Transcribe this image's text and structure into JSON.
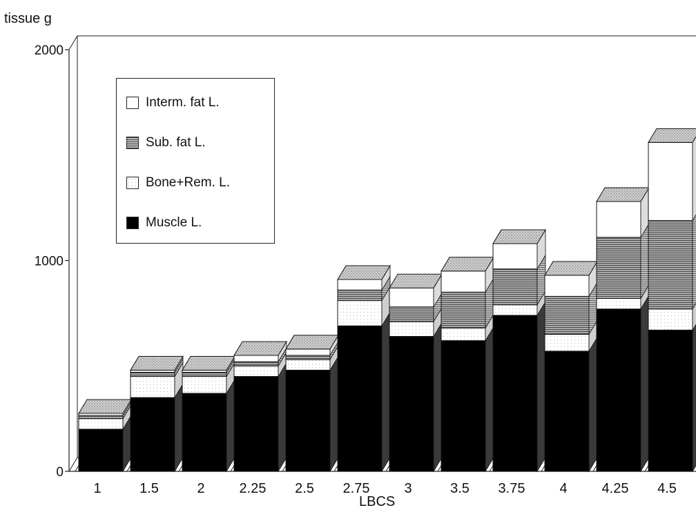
{
  "chart_data": {
    "type": "bar",
    "stacked": true,
    "three_d": true,
    "ylabel": "tissue g",
    "xlabel": "LBCS",
    "ylim": [
      0,
      2000
    ],
    "yticks": [
      "0",
      "1000",
      "2000"
    ],
    "categories": [
      "1",
      "1.5",
      "2",
      "2.25",
      "2.5",
      "2.75",
      "3",
      "3.5",
      "3.75",
      "4",
      "4.25",
      "4.5"
    ],
    "series": [
      {
        "name": "Muscle L.",
        "color": "#000000",
        "pattern": "solid",
        "values": [
          200,
          350,
          370,
          450,
          480,
          690,
          640,
          620,
          740,
          570,
          770,
          670
        ]
      },
      {
        "name": "Bone+Rem. L.",
        "color": "#ffffff",
        "pattern": "dotted",
        "values": [
          50,
          100,
          80,
          50,
          50,
          120,
          70,
          60,
          50,
          80,
          50,
          100
        ]
      },
      {
        "name": "Sub. fat L.",
        "color": "#8a8a8a",
        "pattern": "hatched",
        "values": [
          15,
          20,
          20,
          20,
          20,
          50,
          70,
          170,
          170,
          180,
          290,
          420
        ]
      },
      {
        "name": "Interm. fat L.",
        "color": "#ffffff",
        "pattern": "plain",
        "values": [
          10,
          10,
          10,
          30,
          30,
          50,
          90,
          100,
          120,
          100,
          170,
          370
        ]
      }
    ],
    "legend": [
      "Interm. fat L.",
      "Sub. fat L.",
      "Bone+Rem. L.",
      "Muscle L."
    ],
    "legend_position": "top-left",
    "grid": false
  }
}
